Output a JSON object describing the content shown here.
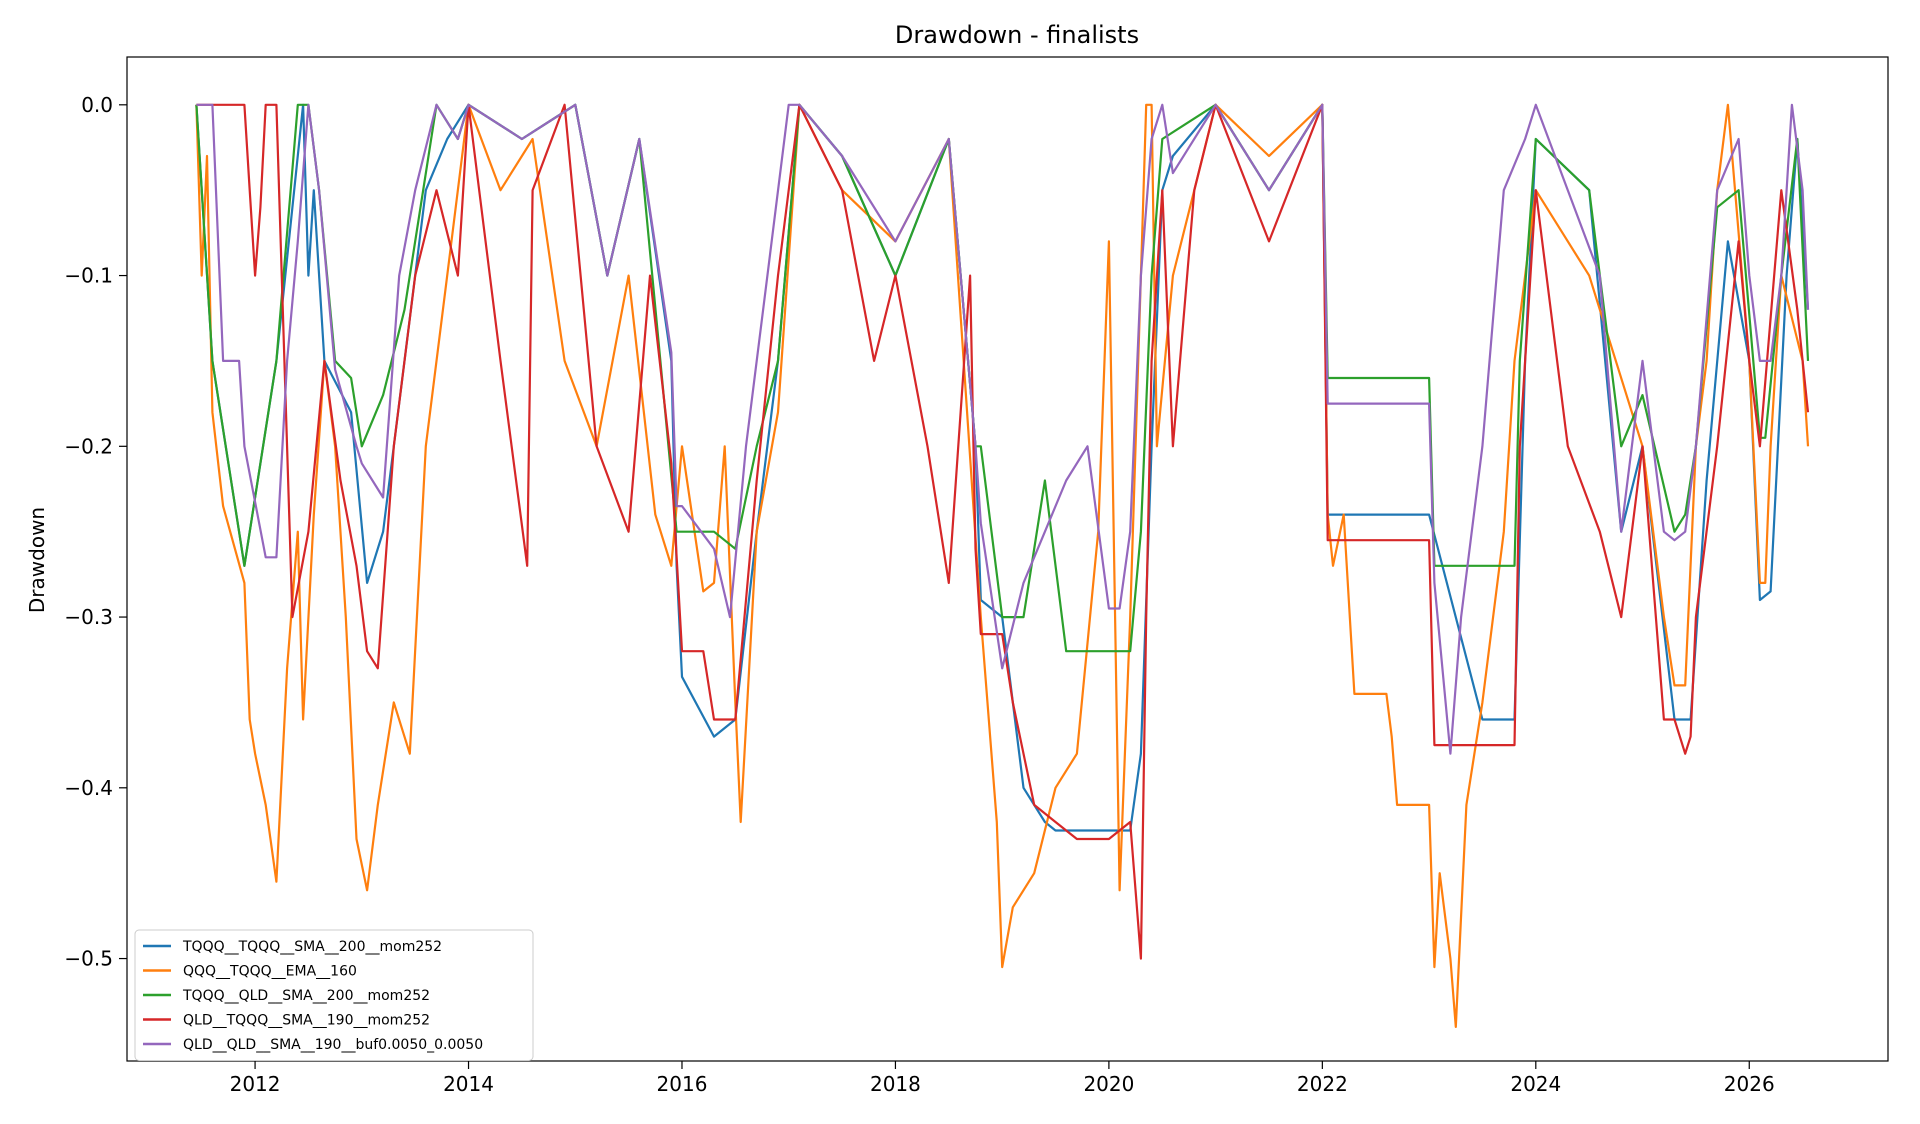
{
  "chart_data": {
    "type": "line",
    "title": "Drawdown - finalists",
    "xlabel": "",
    "ylabel": "Drawdown",
    "xlim": [
      2010.8,
      2027.3
    ],
    "ylim": [
      -0.56,
      0.028
    ],
    "xticks": [
      2012,
      2014,
      2016,
      2018,
      2020,
      2022,
      2024,
      2026
    ],
    "xtick_labels": [
      "2012",
      "2014",
      "2016",
      "2018",
      "2020",
      "2022",
      "2024",
      "2026"
    ],
    "yticks": [
      0.0,
      -0.1,
      -0.2,
      -0.3,
      -0.4,
      -0.5
    ],
    "ytick_labels": [
      "0.0",
      "−0.1",
      "−0.2",
      "−0.3",
      "−0.4",
      "−0.5"
    ],
    "grid": false,
    "legend_position": "lower-left",
    "series": [
      {
        "name": "TQQQ__TQQQ__SMA__200__mom252",
        "color": "#1f77b4",
        "x": [
          2011.45,
          2011.6,
          2011.9,
          2012.2,
          2012.45,
          2012.5,
          2012.55,
          2012.65,
          2012.9,
          2013.05,
          2013.2,
          2013.4,
          2013.6,
          2013.8,
          2014.0,
          2014.5,
          2015.0,
          2015.3,
          2015.6,
          2015.9,
          2015.95,
          2016.0,
          2016.3,
          2016.5,
          2016.7,
          2016.9,
          2017.1,
          2017.5,
          2018.0,
          2018.5,
          2018.75,
          2018.8,
          2019.0,
          2019.2,
          2019.4,
          2019.5,
          2020.0,
          2020.2,
          2020.3,
          2020.4,
          2020.5,
          2020.6,
          2021.0,
          2021.5,
          2022.0,
          2022.05,
          2022.5,
          2023.0,
          2023.5,
          2023.8,
          2023.9,
          2024.0,
          2024.5,
          2024.8,
          2025.0,
          2025.3,
          2025.45,
          2025.6,
          2025.8,
          2026.0,
          2026.1,
          2026.2,
          2026.35,
          2026.45,
          2026.55
        ],
        "y": [
          0.0,
          -0.15,
          -0.27,
          -0.15,
          0.0,
          -0.1,
          -0.05,
          -0.15,
          -0.18,
          -0.28,
          -0.25,
          -0.15,
          -0.05,
          -0.02,
          0.0,
          -0.02,
          0.0,
          -0.1,
          -0.02,
          -0.15,
          -0.27,
          -0.335,
          -0.37,
          -0.36,
          -0.25,
          -0.15,
          0.0,
          -0.03,
          -0.1,
          -0.02,
          -0.2,
          -0.29,
          -0.3,
          -0.4,
          -0.42,
          -0.425,
          -0.425,
          -0.425,
          -0.38,
          -0.2,
          -0.05,
          -0.03,
          0.0,
          -0.05,
          0.0,
          -0.24,
          -0.24,
          -0.24,
          -0.36,
          -0.36,
          -0.15,
          -0.02,
          -0.05,
          -0.25,
          -0.2,
          -0.36,
          -0.36,
          -0.22,
          -0.08,
          -0.15,
          -0.29,
          -0.285,
          -0.1,
          -0.02,
          -0.12
        ]
      },
      {
        "name": "QQQ__TQQQ__EMA__160",
        "color": "#ff7f0e",
        "x": [
          2011.45,
          2011.5,
          2011.55,
          2011.6,
          2011.7,
          2011.9,
          2011.95,
          2012.0,
          2012.1,
          2012.2,
          2012.3,
          2012.4,
          2012.45,
          2012.55,
          2012.65,
          2012.75,
          2012.85,
          2012.95,
          2013.05,
          2013.15,
          2013.3,
          2013.45,
          2013.6,
          2013.8,
          2014.0,
          2014.3,
          2014.6,
          2014.9,
          2015.2,
          2015.5,
          2015.75,
          2015.9,
          2016.0,
          2016.2,
          2016.3,
          2016.4,
          2016.5,
          2016.55,
          2016.7,
          2016.9,
          2017.1,
          2017.5,
          2018.0,
          2018.5,
          2018.8,
          2018.95,
          2019.0,
          2019.1,
          2019.3,
          2019.5,
          2019.7,
          2019.9,
          2020.0,
          2020.1,
          2020.2,
          2020.3,
          2020.35,
          2020.4,
          2020.45,
          2020.6,
          2020.8,
          2021.0,
          2021.5,
          2022.0,
          2022.05,
          2022.1,
          2022.2,
          2022.3,
          2022.6,
          2022.65,
          2022.7,
          2023.0,
          2023.05,
          2023.1,
          2023.2,
          2023.25,
          2023.35,
          2023.5,
          2023.7,
          2023.8,
          2024.0,
          2024.5,
          2025.0,
          2025.2,
          2025.3,
          2025.4,
          2025.5,
          2025.6,
          2025.7,
          2025.8,
          2026.0,
          2026.1,
          2026.15,
          2026.2,
          2026.3,
          2026.5,
          2026.55
        ],
        "y": [
          0.0,
          -0.1,
          -0.03,
          -0.18,
          -0.235,
          -0.28,
          -0.36,
          -0.38,
          -0.41,
          -0.455,
          -0.33,
          -0.25,
          -0.36,
          -0.24,
          -0.15,
          -0.2,
          -0.3,
          -0.43,
          -0.46,
          -0.41,
          -0.35,
          -0.38,
          -0.2,
          -0.1,
          0.0,
          -0.05,
          -0.02,
          -0.15,
          -0.2,
          -0.1,
          -0.24,
          -0.27,
          -0.2,
          -0.285,
          -0.28,
          -0.2,
          -0.35,
          -0.42,
          -0.25,
          -0.18,
          0.0,
          -0.05,
          -0.08,
          -0.02,
          -0.3,
          -0.42,
          -0.505,
          -0.47,
          -0.45,
          -0.4,
          -0.38,
          -0.25,
          -0.08,
          -0.46,
          -0.3,
          -0.1,
          0.0,
          0.0,
          -0.2,
          -0.1,
          -0.05,
          0.0,
          -0.03,
          0.0,
          -0.24,
          -0.27,
          -0.24,
          -0.345,
          -0.345,
          -0.37,
          -0.41,
          -0.41,
          -0.505,
          -0.45,
          -0.5,
          -0.54,
          -0.41,
          -0.35,
          -0.25,
          -0.15,
          -0.05,
          -0.1,
          -0.2,
          -0.3,
          -0.34,
          -0.34,
          -0.2,
          -0.15,
          -0.05,
          0.0,
          -0.15,
          -0.28,
          -0.28,
          -0.2,
          -0.1,
          -0.15,
          -0.2
        ]
      },
      {
        "name": "TQQQ__QLD__SMA__200__mom252",
        "color": "#2ca02c",
        "x": [
          2011.45,
          2011.6,
          2011.9,
          2012.2,
          2012.4,
          2012.5,
          2012.6,
          2012.75,
          2012.9,
          2013.0,
          2013.2,
          2013.4,
          2013.55,
          2013.7,
          2013.9,
          2014.0,
          2014.5,
          2015.0,
          2015.3,
          2015.6,
          2015.95,
          2016.0,
          2016.3,
          2016.5,
          2016.7,
          2016.9,
          2017.1,
          2017.5,
          2018.0,
          2018.5,
          2018.75,
          2018.8,
          2019.0,
          2019.2,
          2019.4,
          2019.6,
          2020.0,
          2020.2,
          2020.3,
          2020.4,
          2020.5,
          2021.0,
          2021.5,
          2022.0,
          2022.05,
          2022.5,
          2023.0,
          2023.05,
          2023.5,
          2023.8,
          2023.85,
          2024.0,
          2024.5,
          2024.8,
          2025.0,
          2025.3,
          2025.4,
          2025.5,
          2025.7,
          2025.9,
          2026.1,
          2026.15,
          2026.3,
          2026.45,
          2026.55
        ],
        "y": [
          0.0,
          -0.15,
          -0.27,
          -0.15,
          0.0,
          0.0,
          -0.05,
          -0.15,
          -0.16,
          -0.2,
          -0.17,
          -0.12,
          -0.06,
          0.0,
          -0.02,
          0.0,
          -0.02,
          0.0,
          -0.1,
          -0.02,
          -0.25,
          -0.25,
          -0.25,
          -0.26,
          -0.2,
          -0.15,
          0.0,
          -0.03,
          -0.1,
          -0.02,
          -0.2,
          -0.2,
          -0.3,
          -0.3,
          -0.22,
          -0.32,
          -0.32,
          -0.32,
          -0.25,
          -0.1,
          -0.02,
          0.0,
          -0.05,
          0.0,
          -0.16,
          -0.16,
          -0.16,
          -0.27,
          -0.27,
          -0.27,
          -0.15,
          -0.02,
          -0.05,
          -0.2,
          -0.17,
          -0.25,
          -0.24,
          -0.2,
          -0.06,
          -0.05,
          -0.195,
          -0.195,
          -0.1,
          -0.02,
          -0.15
        ]
      },
      {
        "name": "QLD__TQQQ__SMA__190__mom252",
        "color": "#d62728",
        "x": [
          2011.45,
          2011.9,
          2011.95,
          2012.0,
          2012.05,
          2012.1,
          2012.2,
          2012.35,
          2012.5,
          2012.65,
          2012.8,
          2012.95,
          2013.05,
          2013.15,
          2013.3,
          2013.5,
          2013.7,
          2013.9,
          2014.0,
          2014.3,
          2014.55,
          2014.6,
          2014.9,
          2015.2,
          2015.5,
          2015.7,
          2015.9,
          2016.0,
          2016.2,
          2016.3,
          2016.5,
          2016.7,
          2016.9,
          2017.1,
          2017.5,
          2017.8,
          2018.0,
          2018.3,
          2018.5,
          2018.7,
          2018.75,
          2018.8,
          2019.0,
          2019.1,
          2019.3,
          2019.5,
          2019.7,
          2019.9,
          2020.0,
          2020.2,
          2020.3,
          2020.35,
          2020.4,
          2020.5,
          2020.6,
          2020.8,
          2021.0,
          2021.5,
          2022.0,
          2022.05,
          2022.5,
          2023.0,
          2023.05,
          2023.5,
          2023.8,
          2023.85,
          2024.0,
          2024.3,
          2024.6,
          2024.8,
          2025.0,
          2025.2,
          2025.3,
          2025.4,
          2025.45,
          2025.5,
          2025.7,
          2025.9,
          2026.0,
          2026.1,
          2026.3,
          2026.45,
          2026.55
        ],
        "y": [
          0.0,
          0.0,
          -0.05,
          -0.1,
          -0.06,
          0.0,
          0.0,
          -0.3,
          -0.25,
          -0.15,
          -0.22,
          -0.27,
          -0.32,
          -0.33,
          -0.2,
          -0.1,
          -0.05,
          -0.1,
          0.0,
          -0.15,
          -0.27,
          -0.05,
          0.0,
          -0.2,
          -0.25,
          -0.1,
          -0.21,
          -0.32,
          -0.32,
          -0.36,
          -0.36,
          -0.22,
          -0.1,
          0.0,
          -0.05,
          -0.15,
          -0.1,
          -0.2,
          -0.28,
          -0.1,
          -0.26,
          -0.31,
          -0.31,
          -0.35,
          -0.41,
          -0.42,
          -0.43,
          -0.43,
          -0.43,
          -0.42,
          -0.5,
          -0.3,
          -0.15,
          -0.05,
          -0.2,
          -0.05,
          0.0,
          -0.08,
          0.0,
          -0.255,
          -0.255,
          -0.255,
          -0.375,
          -0.375,
          -0.375,
          -0.2,
          -0.05,
          -0.2,
          -0.25,
          -0.3,
          -0.2,
          -0.36,
          -0.36,
          -0.38,
          -0.37,
          -0.3,
          -0.2,
          -0.08,
          -0.15,
          -0.2,
          -0.05,
          -0.12,
          -0.18
        ]
      },
      {
        "name": "QLD__QLD__SMA__190__buf0.0050_0.0050",
        "color": "#9467bd",
        "x": [
          2011.45,
          2011.6,
          2011.7,
          2011.85,
          2011.9,
          2012.1,
          2012.2,
          2012.3,
          2012.4,
          2012.5,
          2012.6,
          2012.75,
          2012.95,
          2013.0,
          2013.2,
          2013.35,
          2013.5,
          2013.7,
          2013.9,
          2014.0,
          2014.5,
          2015.0,
          2015.3,
          2015.6,
          2015.9,
          2015.95,
          2016.0,
          2016.3,
          2016.45,
          2016.6,
          2016.8,
          2017.0,
          2017.1,
          2017.5,
          2018.0,
          2018.5,
          2018.75,
          2018.8,
          2019.0,
          2019.2,
          2019.4,
          2019.6,
          2019.8,
          2020.0,
          2020.1,
          2020.2,
          2020.3,
          2020.4,
          2020.5,
          2020.6,
          2021.0,
          2021.5,
          2022.0,
          2022.05,
          2022.5,
          2023.0,
          2023.05,
          2023.2,
          2023.3,
          2023.5,
          2023.7,
          2023.9,
          2024.0,
          2024.3,
          2024.6,
          2024.8,
          2025.0,
          2025.2,
          2025.3,
          2025.4,
          2025.5,
          2025.7,
          2025.9,
          2026.0,
          2026.1,
          2026.2,
          2026.3,
          2026.4,
          2026.5,
          2026.55
        ],
        "y": [
          0.0,
          0.0,
          -0.15,
          -0.15,
          -0.2,
          -0.265,
          -0.265,
          -0.15,
          -0.08,
          0.0,
          -0.05,
          -0.155,
          -0.2,
          -0.21,
          -0.23,
          -0.1,
          -0.05,
          0.0,
          -0.02,
          0.0,
          -0.02,
          0.0,
          -0.1,
          -0.02,
          -0.145,
          -0.235,
          -0.235,
          -0.26,
          -0.3,
          -0.2,
          -0.1,
          0.0,
          0.0,
          -0.03,
          -0.08,
          -0.02,
          -0.2,
          -0.245,
          -0.33,
          -0.28,
          -0.25,
          -0.22,
          -0.2,
          -0.295,
          -0.295,
          -0.25,
          -0.1,
          -0.02,
          0.0,
          -0.04,
          0.0,
          -0.05,
          0.0,
          -0.175,
          -0.175,
          -0.175,
          -0.28,
          -0.38,
          -0.3,
          -0.2,
          -0.05,
          -0.02,
          0.0,
          -0.05,
          -0.1,
          -0.25,
          -0.15,
          -0.25,
          -0.255,
          -0.25,
          -0.2,
          -0.05,
          -0.02,
          -0.1,
          -0.15,
          -0.15,
          -0.1,
          0.0,
          -0.05,
          -0.12
        ]
      }
    ]
  }
}
